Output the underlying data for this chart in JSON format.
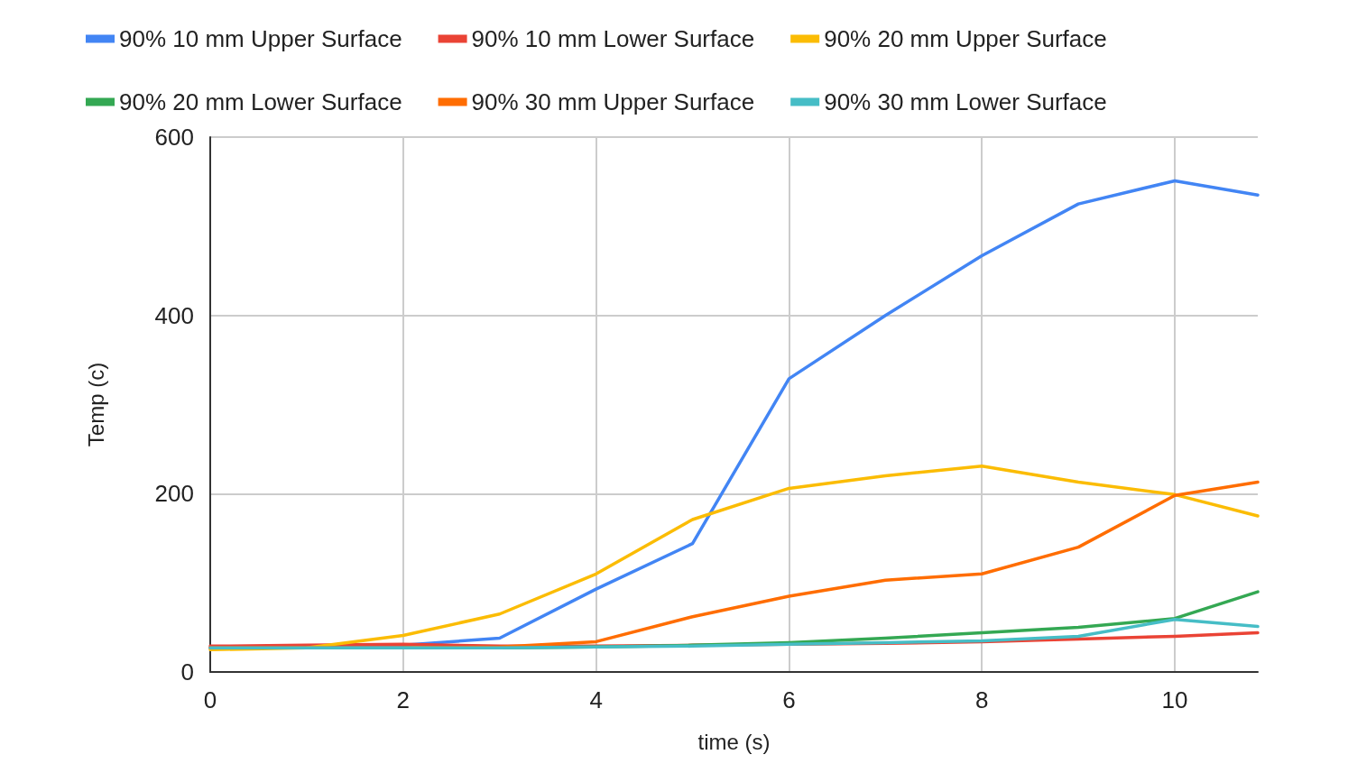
{
  "chart_data": {
    "type": "line",
    "xlabel": "time (s)",
    "ylabel": "Temp (c)",
    "x": [
      0,
      1,
      2,
      3,
      4,
      5,
      6,
      7,
      8,
      9,
      10,
      10.86
    ],
    "xlim": [
      0,
      10.86
    ],
    "xticks": [
      0,
      2,
      4,
      6,
      8,
      10
    ],
    "ylim": [
      0,
      600
    ],
    "yticks": [
      0,
      200,
      400,
      600
    ],
    "grid": true,
    "legend": "top",
    "marker": "none",
    "line_style": "solid",
    "series": [
      {
        "name": "90% 10 mm Upper Surface",
        "color": "#4285f4",
        "values": [
          27,
          27,
          30,
          38,
          93,
          144,
          329,
          400,
          467,
          525,
          551,
          535
        ]
      },
      {
        "name": "90% 10 mm Lower Surface",
        "color": "#ea4335",
        "values": [
          29,
          30,
          31,
          29,
          29,
          30,
          31,
          32,
          34,
          37,
          40,
          44
        ]
      },
      {
        "name": "90% 20 mm Upper Surface",
        "color": "#fbbc04",
        "values": [
          25,
          27,
          41,
          65,
          110,
          171,
          206,
          220,
          231,
          213,
          199,
          175
        ]
      },
      {
        "name": "90% 20 mm Lower Surface",
        "color": "#34a853",
        "values": [
          null,
          null,
          27,
          27,
          28,
          30,
          33,
          38,
          44,
          50,
          60,
          90
        ]
      },
      {
        "name": "90% 30 mm Upper Surface",
        "color": "#ff6d01",
        "values": [
          27,
          27,
          27,
          28,
          34,
          62,
          85,
          103,
          110,
          140,
          198,
          213
        ]
      },
      {
        "name": "90% 30 mm Lower Surface",
        "color": "#46bdc6",
        "values": [
          27,
          27,
          27,
          27,
          28,
          29,
          31,
          33,
          35,
          40,
          59,
          51
        ]
      }
    ]
  }
}
